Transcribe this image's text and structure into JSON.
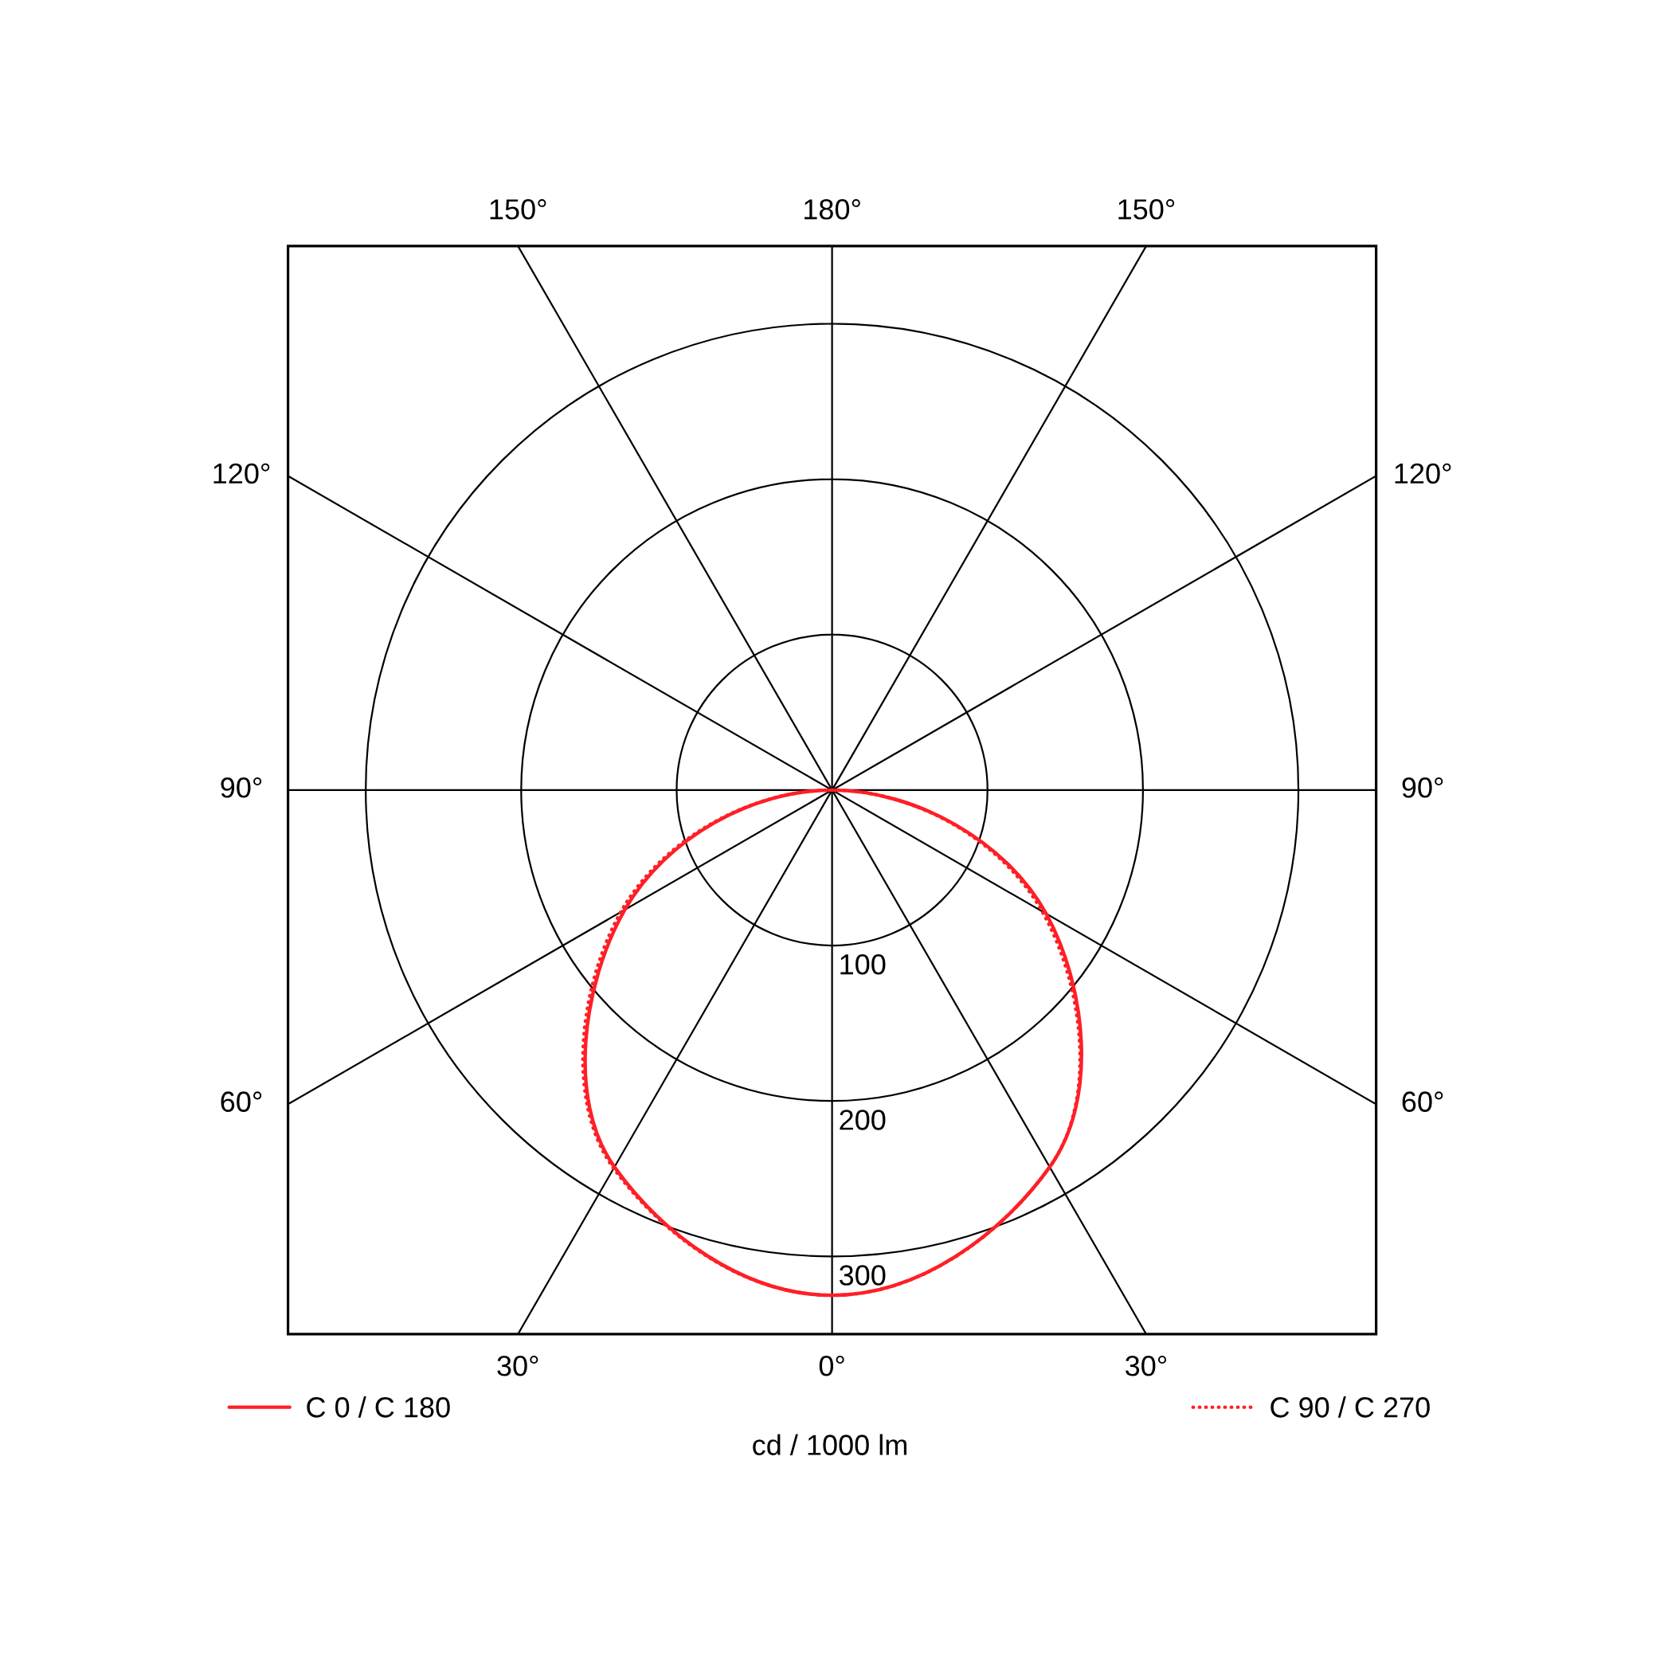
{
  "chart_data": {
    "type": "radar",
    "categories": [
      "180°",
      "150°",
      "120°",
      "90°",
      "60°",
      "30°",
      "0°",
      "30°",
      "60°",
      "90°",
      "120°",
      "150°"
    ],
    "series": [
      {
        "name": "C 0 / C 180",
        "color": "#ff1f26",
        "line_style": "solid",
        "values": [
          0,
          0,
          0,
          0,
          159,
          280,
          325,
          280,
          154,
          0,
          0,
          0
        ]
      },
      {
        "name": "C 90 / C 270",
        "color": "#ff1f26",
        "line_style": "dotted",
        "values": [
          0,
          0,
          0,
          0,
          156,
          280,
          325,
          281,
          157,
          0,
          0,
          0
        ]
      }
    ],
    "ylim": [
      0,
      350
    ],
    "yticks": [
      100,
      200,
      300
    ],
    "ylabel": "cd / 1000 lm",
    "grid": true,
    "legend": "bottom"
  }
}
